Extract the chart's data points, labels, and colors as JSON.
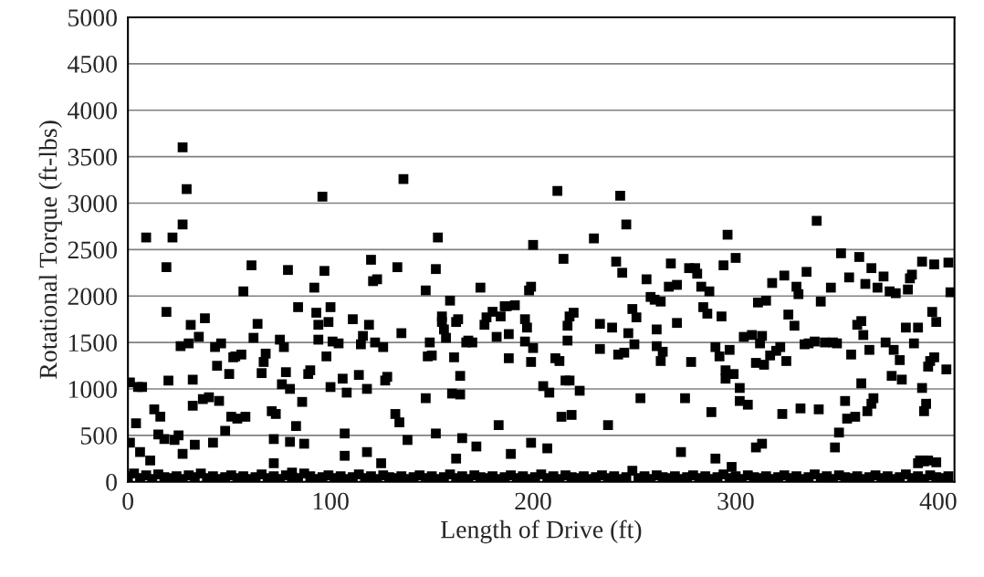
{
  "chart_data": {
    "type": "scatter",
    "xlabel": "Length of Drive (ft)",
    "ylabel": "Rotational Torque (ft-lbs)",
    "xlim": [
      0,
      408
    ],
    "ylim": [
      0,
      5000
    ],
    "xticks": [
      0,
      100,
      200,
      300,
      400
    ],
    "yticks": [
      0,
      500,
      1000,
      1500,
      2000,
      2500,
      3000,
      3500,
      4000,
      4500,
      5000
    ],
    "grid": "y",
    "marker": "square",
    "series": [
      {
        "color": "#000000",
        "x": [
          1,
          1,
          4,
          5,
          7,
          6,
          9,
          11,
          13,
          15,
          16,
          18,
          19,
          19,
          20,
          22,
          23,
          25,
          26,
          27,
          27,
          27,
          29,
          30,
          31,
          32,
          32,
          33,
          35,
          37,
          38,
          40,
          42,
          43,
          44,
          45,
          46,
          48,
          50,
          51,
          52,
          53,
          54,
          56,
          57,
          58,
          61,
          62,
          64,
          66,
          67,
          68,
          71,
          72,
          72,
          73,
          75,
          76,
          77,
          78,
          79,
          80,
          80,
          81,
          83,
          84,
          86,
          87,
          89,
          90,
          92,
          93,
          94,
          94,
          96,
          97,
          98,
          99,
          100,
          100,
          101,
          104,
          106,
          107,
          107,
          108,
          111,
          114,
          115,
          116,
          118,
          118,
          119,
          120,
          121,
          122,
          123,
          125,
          126,
          127,
          128,
          132,
          133,
          134,
          135,
          136,
          138,
          147,
          147,
          148,
          149,
          150,
          152,
          152,
          153,
          155,
          155,
          156,
          157,
          159,
          160,
          161,
          162,
          162,
          163,
          164,
          164,
          165,
          167,
          168,
          170,
          172,
          174,
          176,
          177,
          180,
          182,
          183,
          184,
          186,
          187,
          188,
          188,
          189,
          191,
          196,
          196,
          197,
          198,
          199,
          199,
          199,
          200,
          200,
          205,
          207,
          208,
          211,
          212,
          213,
          214,
          215,
          216,
          217,
          217,
          218,
          218,
          219,
          220,
          223,
          230,
          233,
          233,
          237,
          239,
          241,
          242,
          243,
          244,
          245,
          246,
          247,
          249,
          250,
          251,
          253,
          256,
          258,
          260,
          261,
          261,
          263,
          263,
          264,
          267,
          268,
          271,
          271,
          273,
          275,
          277,
          278,
          280,
          281,
          283,
          284,
          286,
          287,
          288,
          290,
          290,
          292,
          293,
          294,
          295,
          295,
          296,
          297,
          298,
          299,
          300,
          302,
          302,
          304,
          306,
          308,
          310,
          310,
          311,
          312,
          313,
          313,
          314,
          315,
          317,
          318,
          320,
          322,
          323,
          324,
          325,
          326,
          329,
          330,
          331,
          332,
          334,
          335,
          336,
          339,
          340,
          341,
          342,
          344,
          347,
          348,
          349,
          350,
          351,
          352,
          354,
          355,
          356,
          357,
          359,
          360,
          361,
          362,
          362,
          363,
          364,
          365,
          366,
          367,
          367,
          368,
          370,
          373,
          374,
          376,
          377,
          378,
          379,
          381,
          382,
          384,
          385,
          386,
          387,
          388,
          390,
          390,
          391,
          392,
          392,
          393,
          394,
          395,
          396,
          397,
          398,
          398,
          399,
          395,
          399,
          393,
          405,
          406,
          404,
          0,
          3,
          6,
          9,
          12,
          15,
          18,
          21,
          24,
          27,
          30,
          33,
          36,
          39,
          42,
          45,
          48,
          51,
          54,
          57,
          60,
          63,
          66,
          69,
          72,
          75,
          78,
          81,
          84,
          87,
          90,
          93,
          96,
          99,
          102,
          105,
          108,
          111,
          114,
          117,
          120,
          123,
          126,
          129,
          132,
          135,
          138,
          141,
          144,
          147,
          150,
          153,
          156,
          159,
          162,
          165,
          168,
          171,
          174,
          177,
          180,
          183,
          186,
          189,
          192,
          195,
          198,
          201,
          204,
          207,
          210,
          213,
          216,
          219,
          222,
          225,
          228,
          231,
          234,
          237,
          240,
          243,
          246,
          249,
          252,
          255,
          258,
          261,
          264,
          267,
          270,
          273,
          276,
          279,
          282,
          285,
          288,
          291,
          294,
          297,
          300,
          303,
          306,
          309,
          312,
          315,
          318,
          321,
          324,
          327,
          330,
          333,
          336,
          339,
          342,
          345,
          348,
          351,
          354,
          357,
          360,
          363,
          366,
          369,
          372,
          375,
          378,
          381,
          384,
          387,
          390,
          393,
          396,
          399,
          402,
          405
        ],
        "values": [
          1070,
          420,
          630,
          1020,
          1020,
          320,
          2630,
          230,
          780,
          510,
          700,
          460,
          2310,
          1830,
          1090,
          2630,
          450,
          500,
          1460,
          2770,
          3600,
          300,
          3150,
          1490,
          1690,
          820,
          1100,
          400,
          1560,
          890,
          1760,
          910,
          420,
          1450,
          1250,
          870,
          1490,
          550,
          1160,
          700,
          1340,
          1350,
          680,
          1370,
          2050,
          700,
          2330,
          1550,
          1700,
          1170,
          1290,
          1380,
          760,
          460,
          200,
          730,
          1530,
          1050,
          1450,
          1180,
          2280,
          1000,
          430,
          100,
          600,
          1880,
          860,
          410,
          1160,
          1200,
          2090,
          1820,
          1530,
          1690,
          3070,
          2270,
          1350,
          1720,
          1880,
          1020,
          1510,
          1490,
          1110,
          520,
          280,
          960,
          1750,
          1150,
          1480,
          1570,
          320,
          1000,
          1690,
          2390,
          2160,
          1500,
          2180,
          200,
          1450,
          1090,
          1130,
          730,
          2310,
          640,
          1600,
          3260,
          450,
          900,
          2060,
          1350,
          1500,
          1360,
          520,
          2290,
          2630,
          1720,
          1780,
          1640,
          1550,
          1950,
          950,
          1340,
          250,
          1720,
          1750,
          940,
          1140,
          470,
          1500,
          1520,
          1500,
          380,
          2090,
          1690,
          1770,
          1830,
          1560,
          610,
          1780,
          1890,
          1890,
          1590,
          1330,
          300,
          1900,
          1750,
          1510,
          1660,
          2060,
          1290,
          2100,
          420,
          1440,
          2550,
          1030,
          360,
          960,
          1330,
          3130,
          1300,
          700,
          2400,
          1090,
          1520,
          1680,
          1090,
          1780,
          720,
          1820,
          980,
          2620,
          1700,
          1430,
          610,
          1660,
          2370,
          1370,
          3080,
          2250,
          1390,
          2770,
          1600,
          1860,
          1480,
          1770,
          900,
          2180,
          1990,
          1960,
          1640,
          1460,
          1940,
          1300,
          1400,
          2100,
          2350,
          1710,
          2120,
          320,
          900,
          2300,
          1290,
          2300,
          2240,
          2100,
          1880,
          1810,
          2050,
          750,
          1450,
          250,
          1350,
          1780,
          2330,
          1110,
          1200,
          2660,
          1420,
          160,
          1160,
          2410,
          1010,
          870,
          1560,
          830,
          1580,
          370,
          1280,
          1930,
          1490,
          410,
          1570,
          1260,
          1950,
          1360,
          2140,
          1410,
          1450,
          730,
          2220,
          1300,
          1800,
          1680,
          2100,
          2020,
          790,
          1480,
          2260,
          1490,
          1510,
          2810,
          780,
          1940,
          1500,
          2090,
          1500,
          370,
          1490,
          530,
          2460,
          870,
          680,
          2200,
          1370,
          700,
          1690,
          2420,
          1060,
          1730,
          1580,
          2130,
          760,
          1420,
          840,
          2300,
          900,
          2090,
          2210,
          1500,
          2050,
          1140,
          1420,
          2030,
          1310,
          1100,
          1660,
          2070,
          2190,
          2230,
          1490,
          1660,
          200,
          230,
          2370,
          1010,
          760,
          840,
          1240,
          1300,
          1830,
          2340,
          1340,
          1720,
          230,
          210,
          220,
          2360,
          2040,
          1210,
          60,
          90,
          40,
          70,
          30,
          80,
          50,
          40,
          60,
          30,
          70,
          50,
          90,
          40,
          60,
          30,
          50,
          70,
          40,
          60,
          30,
          50,
          80,
          40,
          60,
          30,
          70,
          50,
          40,
          90,
          60,
          30,
          50,
          70,
          40,
          60,
          30,
          50,
          80,
          40,
          60,
          30,
          70,
          50,
          40,
          60,
          30,
          50,
          70,
          40,
          60,
          30,
          50,
          80,
          40,
          60,
          30,
          70,
          50,
          40,
          60,
          30,
          50,
          70,
          40,
          60,
          30,
          50,
          80,
          40,
          60,
          30,
          70,
          50,
          40,
          60,
          30,
          50,
          70,
          40,
          60,
          30,
          50,
          120,
          40,
          60,
          30,
          70,
          50,
          40,
          60,
          30,
          50,
          70,
          40,
          60,
          30,
          50,
          80,
          40,
          60,
          30,
          70,
          50,
          40,
          60,
          30,
          50,
          70,
          40,
          60,
          30,
          50,
          80,
          40,
          60,
          30,
          70,
          50,
          40,
          60,
          30,
          50,
          70,
          40,
          60,
          30,
          50,
          80,
          40,
          60,
          30,
          70,
          50,
          40,
          60
        ]
      }
    ]
  }
}
